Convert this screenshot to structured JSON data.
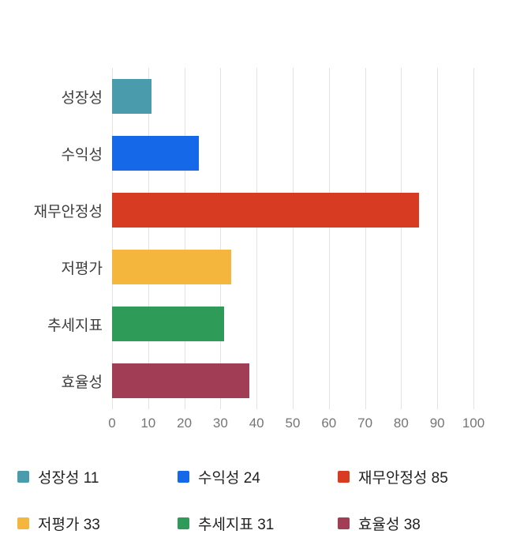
{
  "chart_data": {
    "type": "bar",
    "orientation": "horizontal",
    "title": "",
    "xlabel": "",
    "ylabel": "",
    "categories": [
      "성장성",
      "수익성",
      "재무안정성",
      "저평가",
      "추세지표",
      "효율성"
    ],
    "values": [
      11,
      24,
      85,
      33,
      31,
      38
    ],
    "colors": [
      "#4a9bab",
      "#1568e8",
      "#d73b22",
      "#f5b63e",
      "#2e9c58",
      "#a13e55"
    ],
    "xlim": [
      0,
      100
    ],
    "x_ticks": [
      0,
      10,
      20,
      30,
      40,
      50,
      60,
      70,
      80,
      90,
      100
    ],
    "grid": true,
    "legend_position": "bottom",
    "legend_items": [
      {
        "label": "성장성 11",
        "color": "#4a9bab"
      },
      {
        "label": "수익성 24",
        "color": "#1568e8"
      },
      {
        "label": "재무안정성 85",
        "color": "#d73b22"
      },
      {
        "label": "저평가 33",
        "color": "#f5b63e"
      },
      {
        "label": "추세지표 31",
        "color": "#2e9c58"
      },
      {
        "label": "효율성 38",
        "color": "#a13e55"
      }
    ]
  }
}
